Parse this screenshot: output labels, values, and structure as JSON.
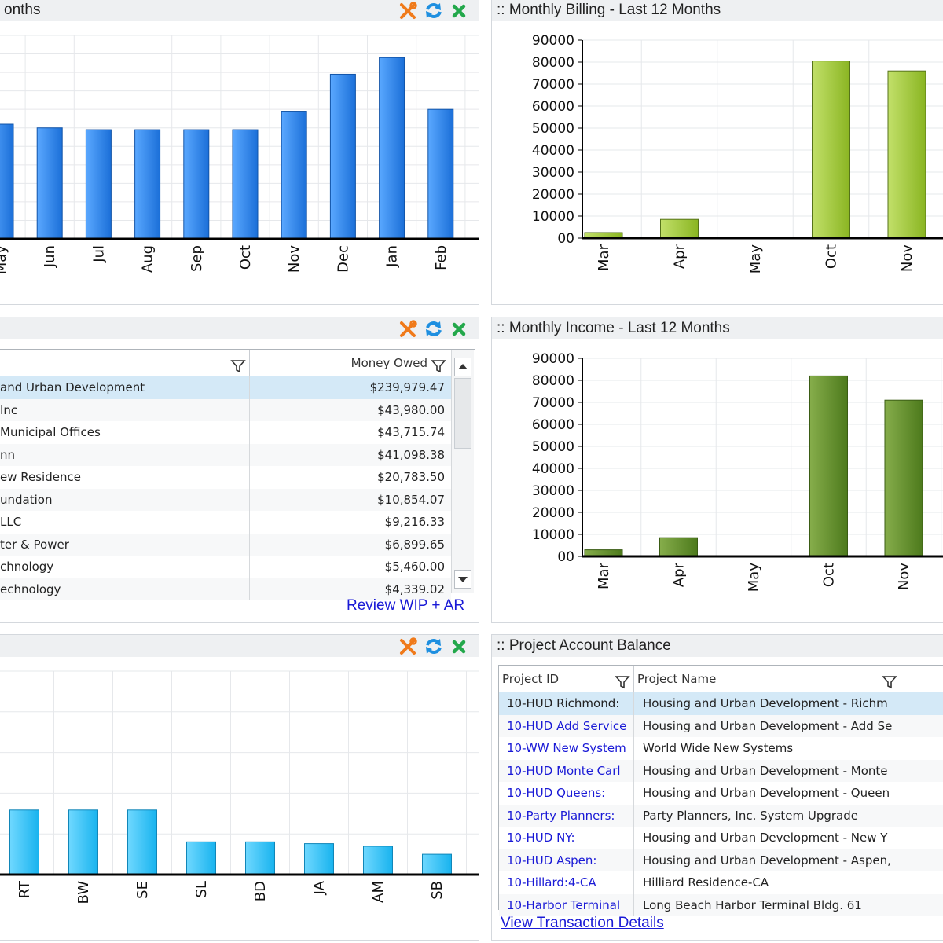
{
  "panels": {
    "top_left": {
      "title": "onths"
    },
    "billing": {
      "title": ":: Monthly Billing - Last 12 Months"
    },
    "mid_left": {
      "title": ""
    },
    "income": {
      "title": ":: Monthly Income - Last 12 Months"
    },
    "bottom_left": {
      "title": ""
    },
    "project_balance": {
      "title": ":: Project Account Balance"
    }
  },
  "icons": {
    "settings": "wrench-screwdriver-icon",
    "refresh": "refresh-icon",
    "close": "close-icon"
  },
  "colors": {
    "blue_bar": "#2f86f0",
    "green_bar_billing": "#9cc72e",
    "green_bar_income": "#5d8a28",
    "cyan_bar": "#2cc2f5",
    "selection": "#d4e9f7",
    "link": "#1a1ad6",
    "tool_orange": "#f07a1a",
    "tool_blue": "#1e8fe0",
    "tool_green": "#23a84b"
  },
  "chart_data": [
    {
      "type": "bar",
      "panel": "top_left",
      "categories": [
        "May",
        "Jun",
        "Jul",
        "Aug",
        "Sep",
        "Oct",
        "Nov",
        "Dec",
        "Jan",
        "Feb"
      ],
      "values": [
        62000,
        60000,
        59000,
        59000,
        59000,
        59000,
        69000,
        89000,
        98000,
        70000
      ],
      "ylim": [
        0,
        110000
      ],
      "grid": true
    },
    {
      "type": "bar",
      "panel": "billing",
      "title": "Monthly Billing - Last 12 Months",
      "categories": [
        "Mar",
        "Apr",
        "May",
        "Oct",
        "Nov"
      ],
      "values": [
        2500,
        8500,
        0,
        80500,
        76000
      ],
      "ylim": [
        0,
        90000
      ],
      "yticks": [
        "90000",
        "80000",
        "70000",
        "60000",
        "50000",
        "40000",
        "30000",
        "20000",
        "10000",
        "00"
      ],
      "grid": true
    },
    {
      "type": "bar",
      "panel": "income",
      "title": "Monthly Income - Last 12 Months",
      "categories": [
        "Mar",
        "Apr",
        "May",
        "Oct",
        "Nov"
      ],
      "values": [
        3000,
        8500,
        0,
        82000,
        71000
      ],
      "ylim": [
        0,
        90000
      ],
      "yticks": [
        "90000",
        "80000",
        "70000",
        "60000",
        "50000",
        "40000",
        "30000",
        "20000",
        "10000",
        "00"
      ],
      "grid": true
    },
    {
      "type": "bar",
      "panel": "bottom_left",
      "categories": [
        "RT",
        "BW",
        "SE",
        "SL",
        "BD",
        "JA",
        "AM",
        "SB"
      ],
      "values": [
        73,
        73,
        73,
        37,
        37,
        35,
        32,
        23
      ],
      "ylim": [
        0,
        230
      ],
      "grid": true
    }
  ],
  "money_owed": {
    "columns": [
      "",
      "Money Owed"
    ],
    "rows": [
      {
        "name": "and Urban Development",
        "amount": "$239,979.47"
      },
      {
        "name": "Inc",
        "amount": "$43,980.00"
      },
      {
        "name": "Municipal Offices",
        "amount": "$43,715.74"
      },
      {
        "name": "nn",
        "amount": "$41,098.38"
      },
      {
        "name": "ew Residence",
        "amount": "$20,783.50"
      },
      {
        "name": "undation",
        "amount": "$10,854.07"
      },
      {
        "name": " LLC",
        "amount": "$9,216.33"
      },
      {
        "name": "ter & Power",
        "amount": "$6,899.65"
      },
      {
        "name": "chnology",
        "amount": "$5,460.00"
      },
      {
        "name": "echnology",
        "amount": "$4,339.02"
      }
    ],
    "link": "Review WIP + AR"
  },
  "project_balance": {
    "columns": [
      "Project ID",
      "Project Name"
    ],
    "rows": [
      {
        "id": "10-HUD Richmond:",
        "name": "Housing and Urban Development - Richm"
      },
      {
        "id": "10-HUD Add Service",
        "name": "Housing and Urban Development - Add Se"
      },
      {
        "id": "10-WW New System",
        "name": "World Wide New Systems"
      },
      {
        "id": "10-HUD Monte Carl",
        "name": "Housing and Urban Development - Monte"
      },
      {
        "id": "10-HUD Queens:",
        "name": "Housing and Urban Development - Queen"
      },
      {
        "id": "10-Party Planners:",
        "name": "Party Planners, Inc. System Upgrade"
      },
      {
        "id": "10-HUD NY:",
        "name": "Housing and Urban Development - New Y"
      },
      {
        "id": "10-HUD Aspen:",
        "name": "Housing and Urban Development - Aspen,"
      },
      {
        "id": "10-Hillard:4-CA",
        "name": "Hilliard Residence-CA"
      },
      {
        "id": "10-Harbor Terminal",
        "name": "Long Beach Harbor Terminal Bldg. 61"
      }
    ],
    "link": "View Transaction Details"
  }
}
